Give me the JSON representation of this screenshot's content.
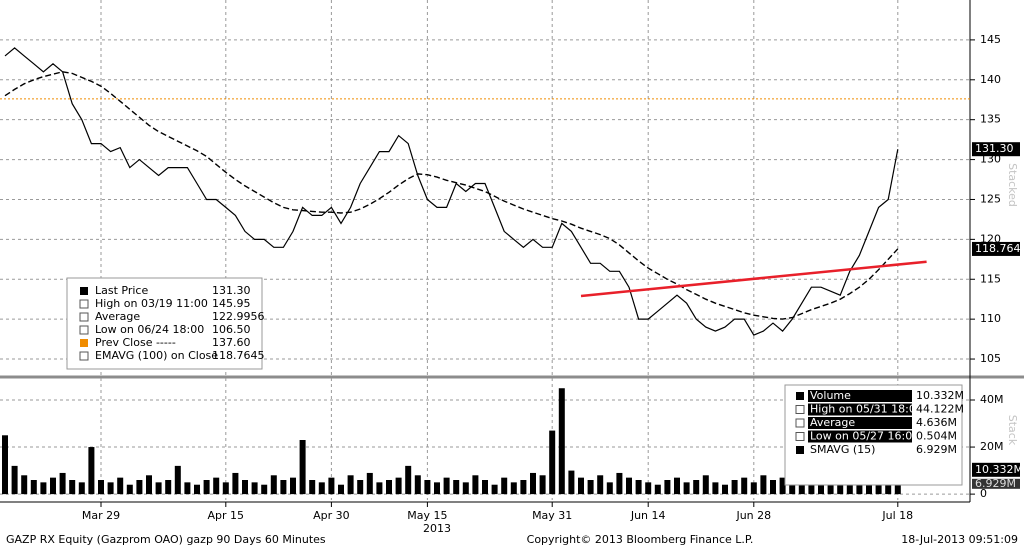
{
  "chart_data": [
    {
      "type": "line",
      "categories": [
        null,
        null,
        null,
        null,
        null,
        null,
        null,
        null,
        null,
        null,
        "Mar 29",
        null,
        null,
        null,
        null,
        null,
        null,
        null,
        null,
        null,
        null,
        null,
        null,
        "Apr 15",
        null,
        null,
        null,
        null,
        null,
        null,
        null,
        null,
        null,
        null,
        "Apr 30",
        null,
        null,
        null,
        null,
        null,
        null,
        null,
        null,
        null,
        "May 15",
        null,
        null,
        null,
        null,
        null,
        null,
        null,
        null,
        null,
        null,
        null,
        null,
        "May 31",
        null,
        null,
        null,
        null,
        null,
        null,
        null,
        null,
        null,
        "Jun 14",
        null,
        null,
        null,
        null,
        null,
        null,
        null,
        null,
        null,
        null,
        "Jun 28",
        null,
        null,
        null,
        null,
        null,
        null,
        null,
        null,
        null,
        null,
        null,
        null,
        null,
        null,
        "Jul 18"
      ],
      "x_group_label": "2013",
      "series": [
        {
          "name": "Last Price",
          "color": "#000000",
          "values": [
            143,
            144,
            143,
            142,
            141,
            142,
            141,
            137,
            135,
            132,
            132,
            131,
            131.5,
            129,
            130,
            129,
            128,
            129,
            129,
            129,
            127,
            125,
            125,
            124,
            123,
            121,
            120,
            120,
            119,
            119,
            121,
            124,
            123,
            123,
            124,
            122,
            124,
            127,
            129,
            131,
            131,
            133,
            132,
            128,
            125,
            124,
            124,
            127,
            126,
            127,
            127,
            124,
            121,
            120,
            119,
            120,
            119,
            119,
            122,
            121,
            119,
            117,
            117,
            116,
            116,
            114,
            110,
            110,
            111,
            112,
            113,
            112,
            110,
            109,
            108.5,
            109,
            110,
            110,
            108,
            108.5,
            109.5,
            108.5,
            110,
            112,
            114,
            114,
            113.5,
            113,
            116,
            118,
            121,
            124,
            125,
            131.3
          ]
        },
        {
          "name": "EMAVG (100) on Close",
          "color": "#000000",
          "dashed": true,
          "values": [
            138,
            138.8,
            139.5,
            140,
            140.4,
            140.7,
            141,
            140.8,
            140.3,
            139.8,
            139.2,
            138.3,
            137.3,
            136.3,
            135.3,
            134.3,
            133.5,
            132.9,
            132.3,
            131.7,
            131.1,
            130.4,
            129.4,
            128.4,
            127.5,
            126.7,
            126,
            125.3,
            124.6,
            124,
            123.7,
            123.6,
            123.5,
            123.4,
            123.4,
            123.3,
            123.4,
            123.8,
            124.4,
            125.1,
            125.9,
            126.8,
            127.6,
            128.2,
            128.1,
            127.8,
            127.4,
            127.1,
            126.8,
            126.4,
            126,
            125.4,
            124.8,
            124.3,
            123.8,
            123.4,
            123,
            122.6,
            122.3,
            121.9,
            121.4,
            121,
            120.6,
            120.1,
            119.3,
            118.3,
            117.3,
            116.4,
            115.7,
            115,
            114.4,
            113.7,
            113.1,
            112.5,
            112,
            111.6,
            111.2,
            110.8,
            110.5,
            110.3,
            110.1,
            110,
            110.2,
            110.7,
            111.2,
            111.6,
            112,
            112.5,
            113.2,
            114,
            115,
            116.2,
            117.5,
            118.8
          ]
        }
      ],
      "prev_close": {
        "value": 137.6,
        "color": "#f08c00"
      },
      "trendline": {
        "x": [
          60,
          96
        ],
        "values": [
          112.9,
          117.2
        ],
        "color": "#e8202a"
      },
      "ylim": [
        103,
        150
      ],
      "yticks": [
        105,
        110,
        115,
        120,
        125,
        130,
        135,
        140,
        145
      ],
      "grid": true,
      "panel_label": "Stacked",
      "legend": [
        {
          "label": "Last Price",
          "value": "131.30"
        },
        {
          "label": "High on 03/19 11:00",
          "value": "145.95"
        },
        {
          "label": "Average",
          "value": "122.9956"
        },
        {
          "label": "Low on 06/24 18:00",
          "value": "106.50"
        },
        {
          "label": "Prev Close -----",
          "value": "137.60"
        },
        {
          "label": "EMAVG (100) on Close",
          "value": "118.7645"
        }
      ]
    },
    {
      "type": "bar",
      "series": [
        {
          "name": "Volume",
          "color": "#000000",
          "values": [
            25,
            12,
            8,
            6,
            5,
            7,
            9,
            6,
            5,
            20,
            6,
            5,
            7,
            4,
            6,
            8,
            5,
            6,
            12,
            5,
            4,
            6,
            7,
            5,
            9,
            6,
            5,
            4,
            8,
            6,
            7,
            23,
            6,
            5,
            7,
            4,
            8,
            6,
            9,
            5,
            6,
            7,
            12,
            8,
            6,
            5,
            7,
            6,
            5,
            8,
            6,
            4,
            7,
            5,
            6,
            9,
            8,
            27,
            45,
            10,
            7,
            6,
            8,
            5,
            9,
            7,
            6,
            5,
            4,
            6,
            7,
            5,
            6,
            8,
            5,
            4,
            6,
            7,
            5,
            8,
            6,
            7,
            5,
            9,
            6,
            8,
            6,
            7,
            10,
            8,
            9,
            11,
            12,
            10.332
          ]
        }
      ],
      "sma_last": 6.929,
      "ylim": [
        -2.5,
        48.5
      ],
      "yticks": [
        0,
        {
          "value": 20,
          "label": "20M"
        },
        {
          "value": 40,
          "label": "40M"
        }
      ],
      "grid": true,
      "panel_label": "Stack",
      "legend": [
        {
          "label": "Volume",
          "value": "10.332M"
        },
        {
          "label": "High on 05/31 18:00",
          "value": "44.122M"
        },
        {
          "label": "Average",
          "value": "4.636M"
        },
        {
          "label": "Low on 05/27 16:00",
          "value": "0.504M"
        },
        {
          "label": "SMAVG (15)",
          "value": "6.929M"
        }
      ]
    }
  ],
  "footer": {
    "left": "GAZP RX Equity (Gazprom OAO) gazp 90 Days 60 Minutes",
    "center": "Copyright© 2013 Bloomberg Finance L.P.",
    "right": "18-Jul-2013 09:51:09"
  }
}
